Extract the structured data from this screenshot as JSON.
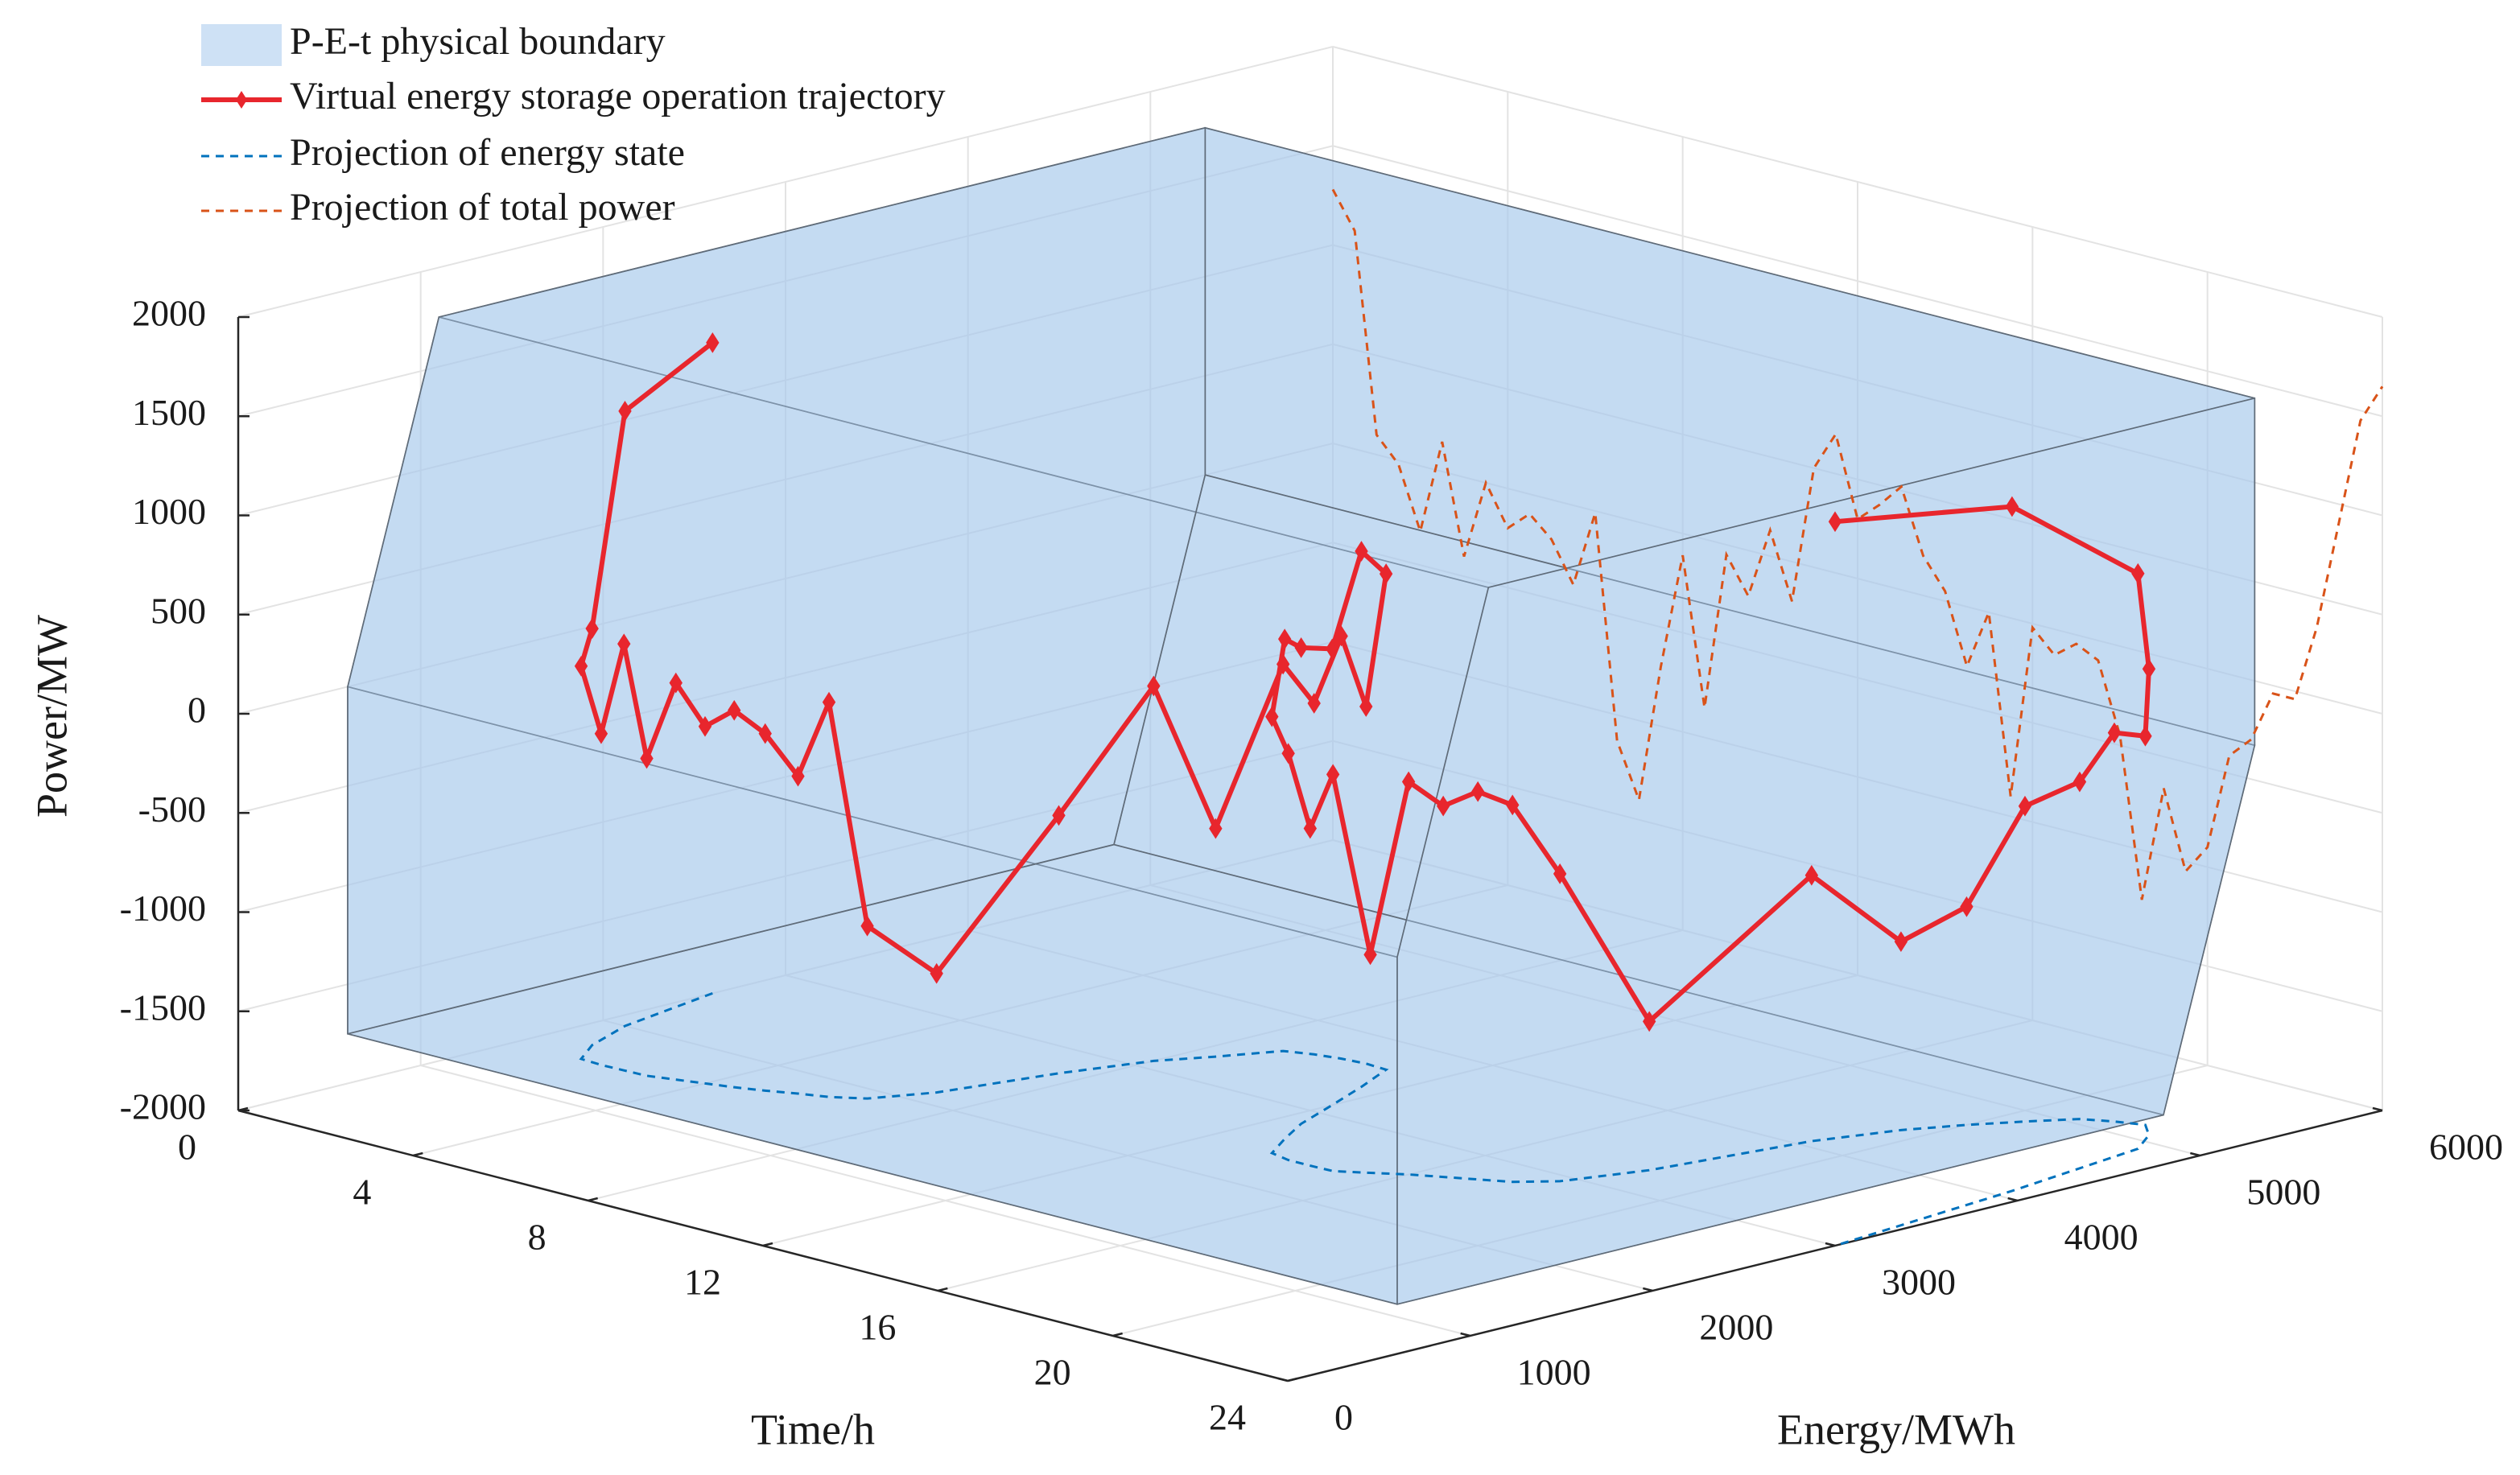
{
  "chart_data": {
    "type": "line3d",
    "xlabel": "Time/h",
    "ylabel": "Energy/MWh",
    "zlabel": "Power/MW",
    "xlim": [
      0,
      24
    ],
    "xticks": [
      0,
      4,
      8,
      12,
      16,
      20,
      24
    ],
    "ylim": [
      0,
      6000
    ],
    "yticks": [
      0,
      1000,
      2000,
      3000,
      4000,
      5000,
      6000
    ],
    "zlim": [
      -2000,
      2000
    ],
    "zticks": [
      -2000,
      -1500,
      -1000,
      -500,
      0,
      500,
      1000,
      1500,
      2000
    ],
    "grid": true,
    "legend": "upper left",
    "boundary": {
      "name": "P-E-t physical boundary",
      "color": "#a6c8ec",
      "time": [
        0,
        24
      ],
      "energy": [
        600,
        600,
        1100,
        5300,
        5300,
        4800
      ],
      "power": [
        -1750,
        0,
        1750,
        1750,
        0,
        -1750
      ]
    },
    "series": [
      {
        "name": "Virtual energy storage operation trajectory",
        "color": "#e8262d",
        "time": [
          0,
          0.5,
          1,
          1.5,
          2,
          2.5,
          3,
          3.5,
          4,
          4.5,
          5,
          5.5,
          6,
          6.5,
          7,
          7.5,
          8,
          8.5,
          9,
          9.5,
          10,
          10.5,
          11,
          11.5,
          12,
          12.5,
          13,
          13.5,
          14,
          14.5,
          15,
          15.5,
          16,
          16.5,
          17,
          17.5,
          18,
          18.5,
          19,
          19.5,
          20,
          20.5,
          21,
          21.5,
          22,
          22.5,
          23,
          23.5,
          24
        ],
        "energy": [
          2600,
          2000,
          1700,
          1520,
          1510,
          1515,
          1520,
          1560,
          1600,
          1640,
          1690,
          1750,
          1800,
          1890,
          2150,
          2700,
          3100,
          3320,
          3570,
          3620,
          3650,
          3665,
          3655,
          3400,
          3120,
          2830,
          2620,
          2430,
          2400,
          2400,
          2405,
          2490,
          2580,
          2650,
          2720,
          2790,
          2930,
          3300,
          4070,
          4440,
          4680,
          4880,
          5060,
          5130,
          5180,
          5080,
          4900,
          4090,
          3000
        ],
        "power": [
          1280,
          1100,
          100,
          -20,
          -330,
          150,
          -400,
          0,
          -200,
          -100,
          -200,
          -400,
          -10,
          -1130,
          -1400,
          -700,
          -110,
          -850,
          -50,
          -230,
          130,
          -200,
          500,
          700,
          300,
          400,
          520,
          200,
          50,
          -300,
          0,
          -900,
          -20,
          -130,
          -45,
          -100,
          -450,
          -1250,
          -660,
          -1050,
          -900,
          -410,
          -300,
          -40,
          -40,
          350,
          900,
          1450,
          1650
        ]
      }
    ],
    "energy_projection": {
      "name": "Projection of energy state",
      "color": "#0072bd"
    },
    "power_projection": {
      "name": "Projection of total power",
      "color": "#d95319"
    }
  }
}
